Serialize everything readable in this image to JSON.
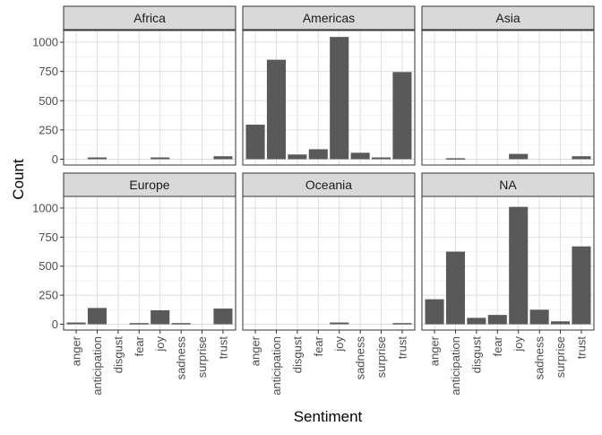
{
  "chart_data": {
    "type": "bar",
    "layout": "faceted 2x3 grid with shared y axis per row and shared x axis per column",
    "xlabel": "Sentiment",
    "ylabel": "Count",
    "ylim": [
      -50,
      1100
    ],
    "yticks": [
      0,
      250,
      500,
      750,
      1000
    ],
    "categories": [
      "anger",
      "anticipation",
      "disgust",
      "fear",
      "joy",
      "sadness",
      "surprise",
      "trust"
    ],
    "grid": true,
    "bar_color": "#595959",
    "strip_color": "#d9d9d9",
    "panels": [
      {
        "name": "Africa",
        "values": [
          0,
          15,
          0,
          0,
          15,
          0,
          0,
          25
        ]
      },
      {
        "name": "Americas",
        "values": [
          295,
          850,
          40,
          85,
          1045,
          55,
          15,
          745
        ]
      },
      {
        "name": "Asia",
        "values": [
          0,
          8,
          0,
          0,
          45,
          0,
          0,
          25
        ]
      },
      {
        "name": "Europe",
        "values": [
          15,
          140,
          0,
          10,
          120,
          10,
          0,
          135
        ]
      },
      {
        "name": "Oceania",
        "values": [
          0,
          0,
          0,
          0,
          15,
          0,
          0,
          10
        ]
      },
      {
        "name": "NA",
        "values": [
          215,
          625,
          55,
          80,
          1010,
          125,
          25,
          670
        ]
      }
    ]
  }
}
